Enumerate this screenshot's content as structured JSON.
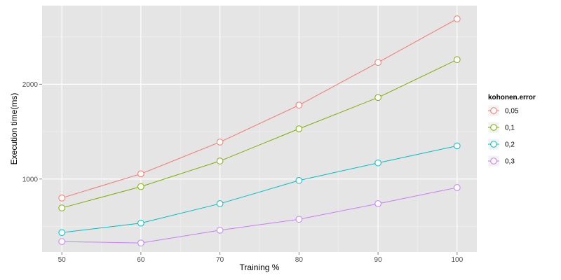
{
  "chart_data": {
    "type": "line",
    "title": "",
    "xlabel": "Training %",
    "ylabel": "Execution time(ms)",
    "x": [
      50,
      60,
      70,
      80,
      90,
      100
    ],
    "xlim": [
      47.5,
      102.5
    ],
    "ylim": [
      230,
      2830
    ],
    "x_ticks": [
      50,
      60,
      70,
      80,
      90,
      100
    ],
    "y_ticks": [
      1000,
      2000
    ],
    "grid": true,
    "legend": {
      "title": "kohonen.error",
      "position": "right"
    },
    "series": [
      {
        "name": "0,05",
        "color": "#F8766D",
        "values": [
          800,
          1055,
          1390,
          1780,
          2230,
          2690
        ]
      },
      {
        "name": "0,1",
        "color": "#7CAE00",
        "values": [
          695,
          920,
          1190,
          1530,
          1860,
          2260
        ]
      },
      {
        "name": "0,2",
        "color": "#00BFC4",
        "values": [
          435,
          535,
          740,
          985,
          1170,
          1350
        ]
      },
      {
        "name": "0,3",
        "color": "#C77CFF",
        "values": [
          340,
          325,
          460,
          575,
          740,
          910
        ]
      }
    ]
  }
}
